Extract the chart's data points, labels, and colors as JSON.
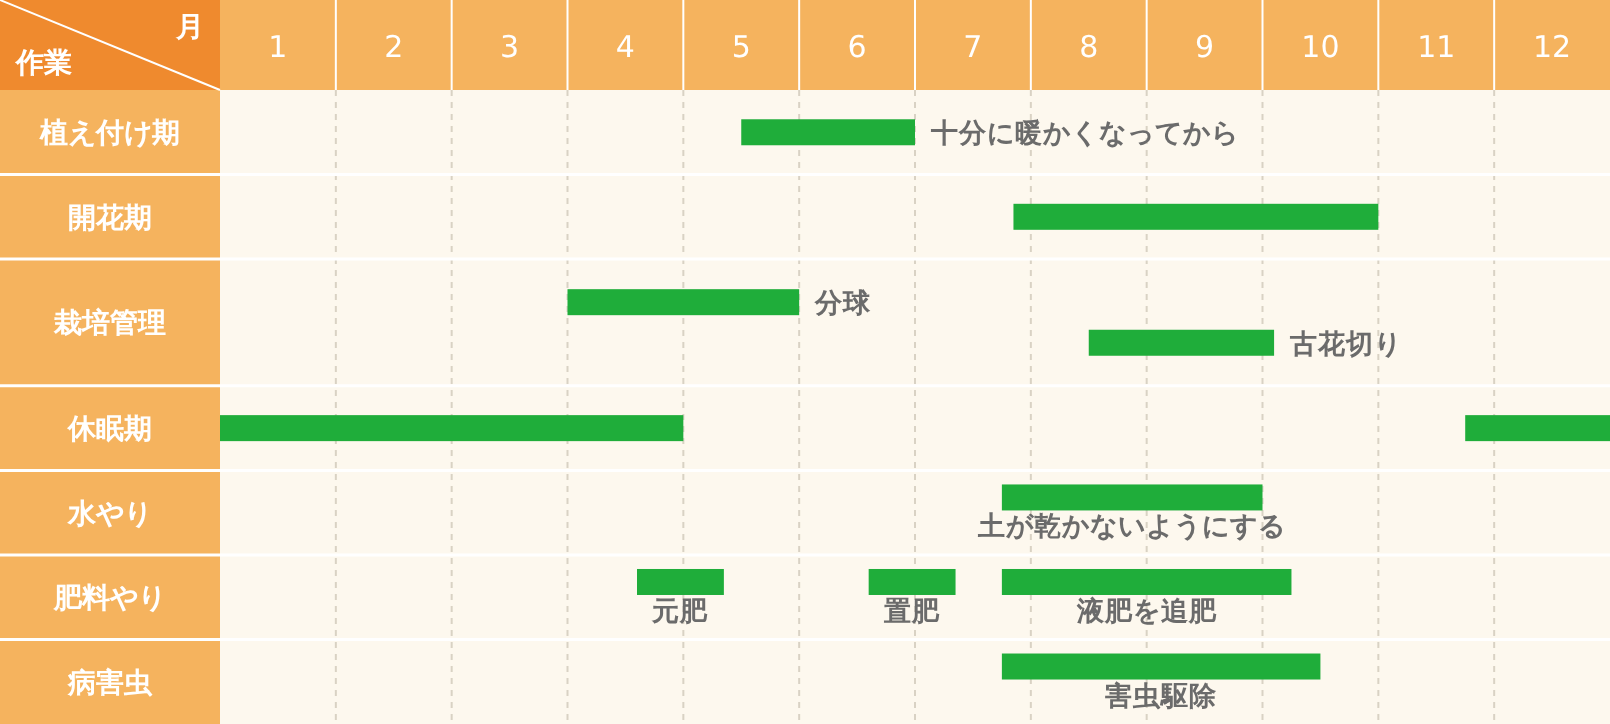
{
  "chart_data": {
    "type": "bar",
    "orientation": "horizontal",
    "xlabel": "月",
    "ylabel": "作業",
    "categories": [
      "植え付け期",
      "開花期",
      "栽培管理",
      "休眠期",
      "水やり",
      "肥料やり",
      "病害虫"
    ],
    "series": [
      {
        "color": "#1fad3a",
        "values": [
          1.5,
          3.15,
          2.0,
          4,
          2.25,
          0.75,
          2.75
        ],
        "base": [
          4.5,
          6.85,
          3.0,
          0,
          6.75,
          3.6,
          6.75
        ]
      },
      {
        "color": "#1fad3a",
        "values": [
          null,
          null,
          1.6,
          1.25,
          null,
          0.75,
          null
        ],
        "base": [
          null,
          null,
          7.5,
          10.75,
          null,
          5.6,
          null
        ]
      },
      {
        "color": "#1fad3a",
        "values": [
          null,
          null,
          null,
          null,
          null,
          2.5,
          null
        ],
        "base": [
          null,
          null,
          null,
          null,
          null,
          6.75,
          null
        ]
      }
    ],
    "xlim": [
      0,
      12
    ],
    "xticks": [
      {
        "value": 0.5,
        "label": "1"
      },
      {
        "value": 1.5,
        "label": "2"
      },
      {
        "value": 2.5,
        "label": "3"
      },
      {
        "value": 3.5,
        "label": "4"
      },
      {
        "value": 4.5,
        "label": "5"
      },
      {
        "value": 5.5,
        "label": "6"
      },
      {
        "value": 6.5,
        "label": "7"
      },
      {
        "value": 7.5,
        "label": "8"
      },
      {
        "value": 8.5,
        "label": "9"
      },
      {
        "value": 9.5,
        "label": "10"
      },
      {
        "value": 10.5,
        "label": "11"
      },
      {
        "value": 11.5,
        "label": "12"
      },
      {
        "value": 1,
        "label": null
      },
      {
        "value": 2,
        "label": null
      },
      {
        "value": 3,
        "label": null
      },
      {
        "value": 4,
        "label": null
      },
      {
        "value": 5,
        "label": null
      },
      {
        "value": 6,
        "label": null
      },
      {
        "value": 7,
        "label": null
      },
      {
        "value": 8,
        "label": null
      },
      {
        "value": 9,
        "label": null
      },
      {
        "value": 10,
        "label": null
      },
      {
        "value": 11,
        "label": null
      }
    ],
    "grid": "x",
    "annotations": [
      {
        "text": "十分に暖かくなってから",
        "x": 6,
        "y": "植え付け期"
      },
      {
        "text": "分球",
        "x": 5,
        "y": "栽培管理"
      },
      {
        "text": "古花切り",
        "x": 9.1,
        "y": "栽培管理"
      },
      {
        "text": "土が乾かないようにする",
        "x": 7.875,
        "y": "水やり"
      },
      {
        "text": "元肥",
        "x": 3.975,
        "y": "肥料やり"
      },
      {
        "text": "置肥",
        "x": 5.975,
        "y": "肥料やり"
      },
      {
        "text": "液肥を追肥",
        "x": 8,
        "y": "肥料やり"
      },
      "害虫駆除"
    ]
  }
}
